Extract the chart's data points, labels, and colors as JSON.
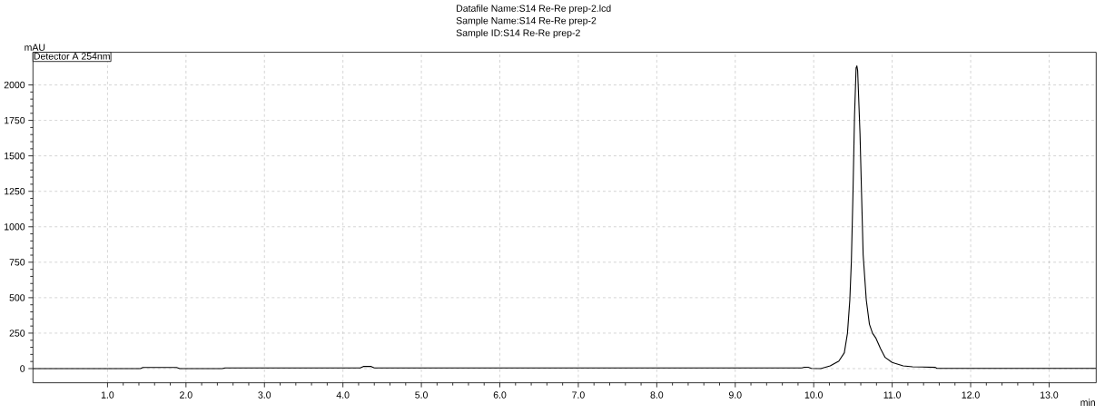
{
  "chart_data": {
    "type": "line",
    "title": "Datafile Name:S14 Re-Re prep-2.lcd",
    "subtitle": "Sample Name:S14 Re-Re prep-2",
    "annotations": [
      "Sample ID:S14 Re-Re prep-2"
    ],
    "xlabel": "min",
    "ylabel": "mAU",
    "series": [
      {
        "name": "Detector A 254nm",
        "color": "#000000",
        "x": [
          0.05,
          1.42,
          1.45,
          1.88,
          1.92,
          2.46,
          2.5,
          4.22,
          4.26,
          4.36,
          4.4,
          9.85,
          9.88,
          9.93,
          9.97,
          10.09,
          10.21,
          10.32,
          10.39,
          10.43,
          10.46,
          10.48,
          10.5,
          10.52,
          10.54,
          10.55,
          10.56,
          10.59,
          10.61,
          10.63,
          10.67,
          10.71,
          10.75,
          10.79,
          10.85,
          10.91,
          11.0,
          11.14,
          11.26,
          11.55,
          11.57,
          13.6
        ],
        "values": [
          0,
          0,
          8,
          8,
          0,
          0,
          5,
          5,
          15,
          15,
          5,
          5,
          10,
          10,
          2,
          0,
          19,
          53,
          111,
          249,
          483,
          760,
          1226,
          1780,
          2121,
          2134,
          2100,
          1653,
          1226,
          802,
          483,
          313,
          249,
          217,
          143,
          79,
          43,
          19,
          13,
          9,
          2,
          2
        ]
      }
    ],
    "xlim": [
      0.05,
      13.6
    ],
    "ylim": [
      -100,
      2230
    ],
    "xticks": [
      {
        "value": 1,
        "label": "1.0"
      },
      {
        "value": 2,
        "label": "2.0"
      },
      {
        "value": 3,
        "label": "3.0"
      },
      {
        "value": 4,
        "label": "4.0"
      },
      {
        "value": 5,
        "label": "5.0"
      },
      {
        "value": 6,
        "label": "6.0"
      },
      {
        "value": 7,
        "label": "7.0"
      },
      {
        "value": 8,
        "label": "8.0"
      },
      {
        "value": 9,
        "label": "9.0"
      },
      {
        "value": 10,
        "label": "10.0"
      },
      {
        "value": 11,
        "label": "11.0"
      },
      {
        "value": 12,
        "label": "12.0"
      },
      {
        "value": 13,
        "label": "13.0"
      }
    ],
    "yticks": [
      0,
      250,
      500,
      750,
      1000,
      1250,
      1500,
      1750,
      2000
    ],
    "grid": true,
    "legend": "top left",
    "line_style": "solid"
  }
}
